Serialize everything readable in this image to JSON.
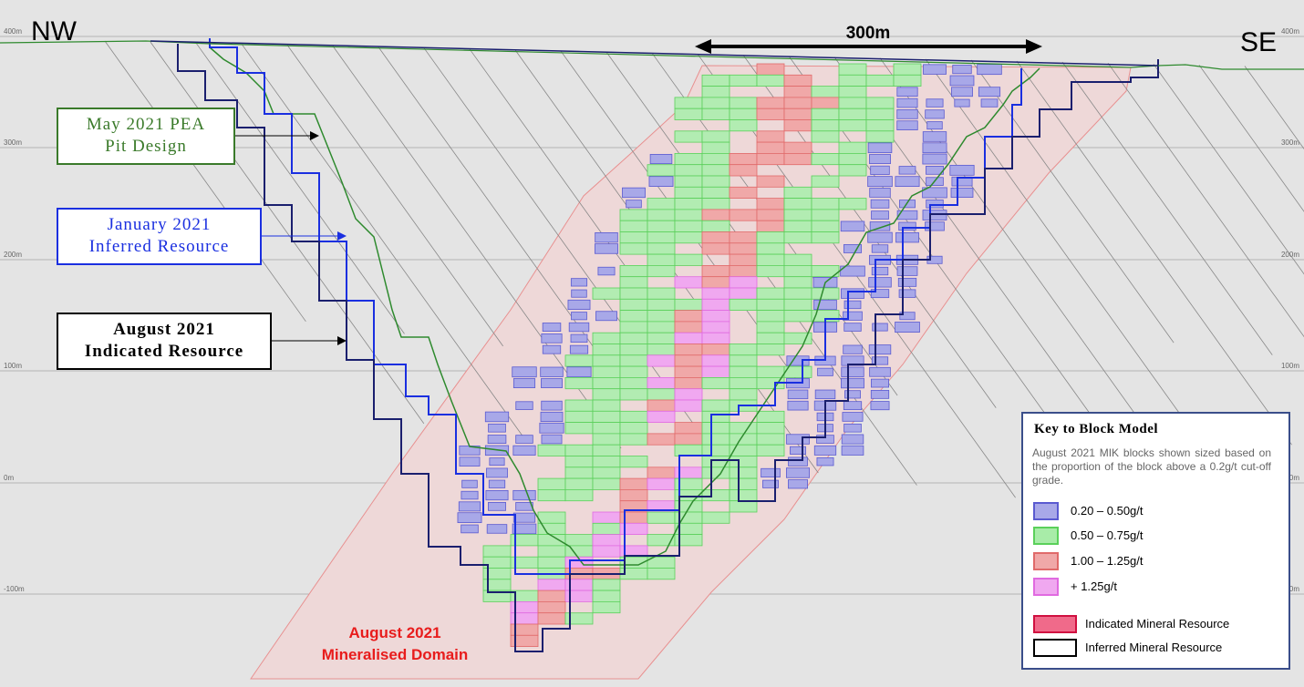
{
  "labels": {
    "nw": "NW",
    "se": "SE",
    "scale": "300m"
  },
  "elevations": [
    "400m",
    "300m",
    "200m",
    "100m",
    "0m",
    "-100m"
  ],
  "callouts": [
    {
      "lines": [
        "May 2021 PEA",
        "Pit Design"
      ]
    },
    {
      "lines": [
        "January 2021",
        "Inferred Resource"
      ]
    },
    {
      "lines": [
        "August 2021",
        "Indicated Resource"
      ]
    }
  ],
  "domain_label": [
    "August 2021",
    "Mineralised Domain"
  ],
  "key": {
    "title": "Key to Block Model",
    "description": "August 2021 MIK blocks shown sized based on the proportion of the block above a 0.2g/t cut-off grade.",
    "grades": [
      "0.20 – 0.50g/t",
      "0.50 – 0.75g/t",
      "1.00 – 1.25g/t",
      "+ 1.25g/t"
    ],
    "classes": [
      "Indicated Mineral Resource",
      "Inferred Mineral Resource"
    ]
  }
}
